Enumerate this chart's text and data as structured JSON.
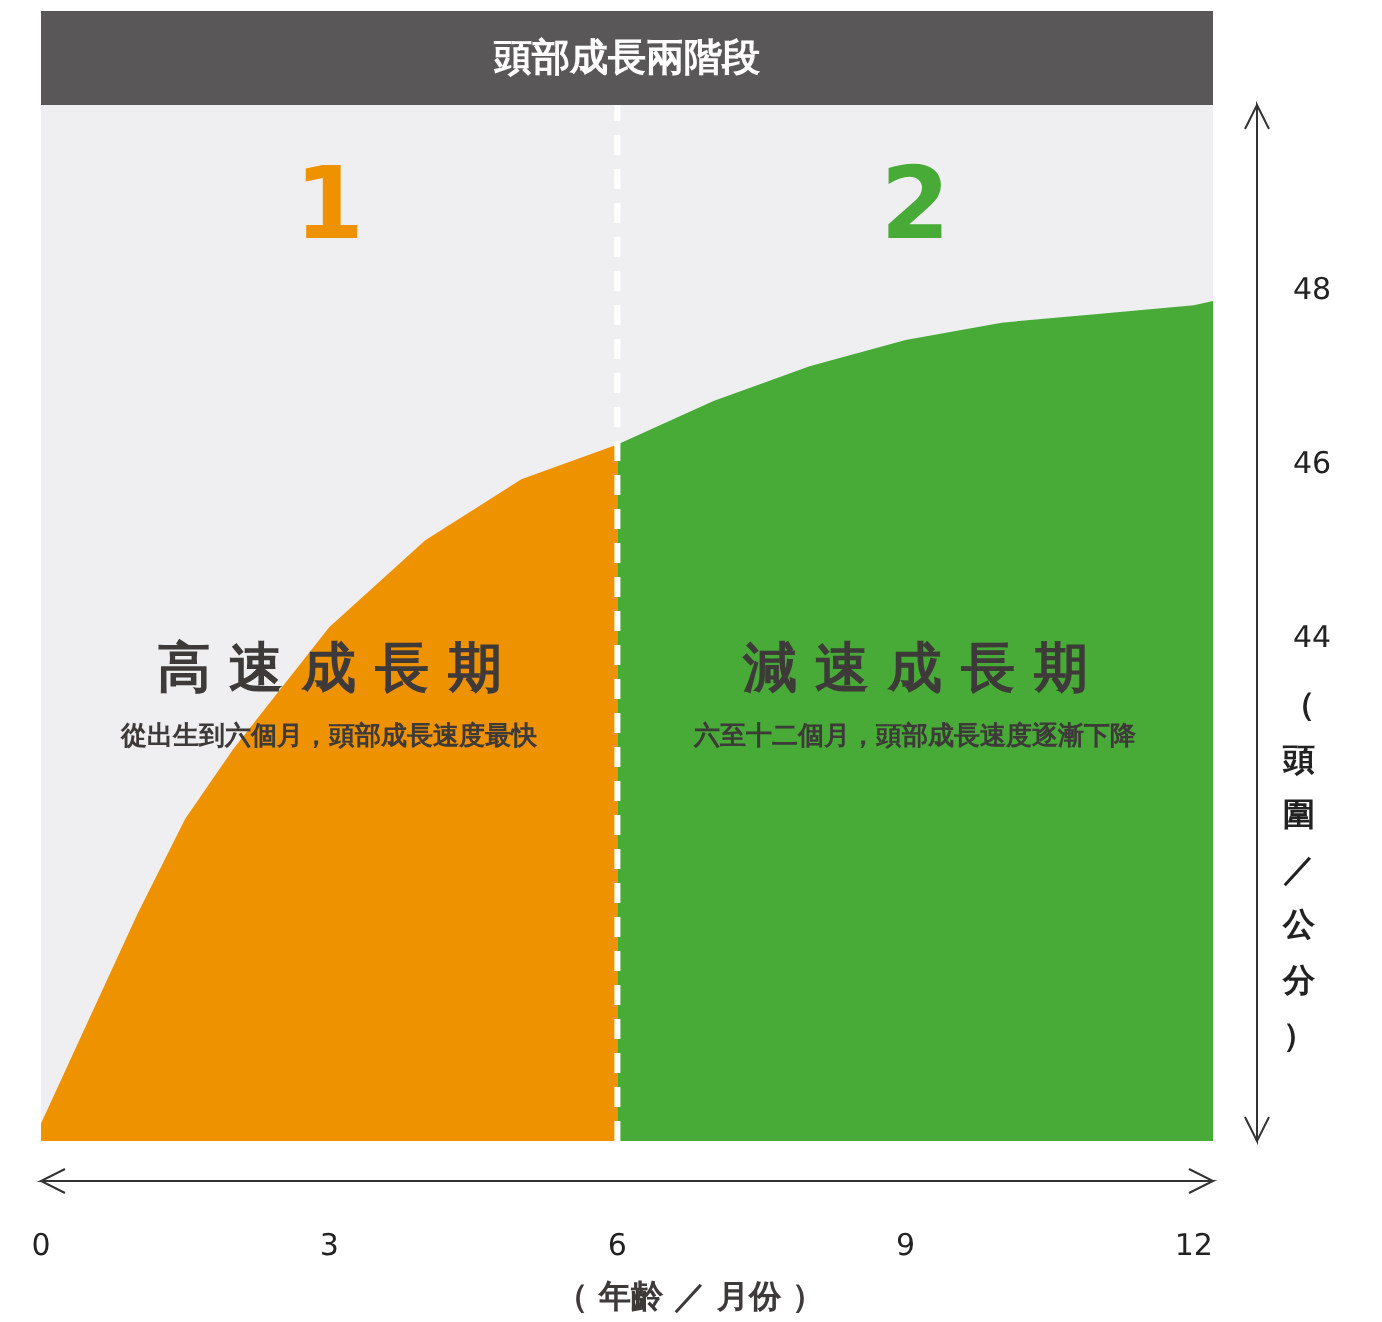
{
  "chart_data": {
    "type": "area",
    "title": "頭部成長兩階段",
    "xlabel": "（ 年齡 ／ 月份 ）",
    "ylabel": "（頭圍／公分）",
    "xlim": [
      0,
      12.2
    ],
    "xticks": [
      0,
      3,
      6,
      9,
      12
    ],
    "ylim": [
      38.2,
      50.1
    ],
    "yticks": [
      44,
      46,
      48
    ],
    "series": [
      {
        "name": "1",
        "color": "#ef9200",
        "x": [
          0,
          0.5,
          1,
          1.5,
          2,
          3,
          4,
          5,
          6
        ],
        "values": [
          38.4,
          39.6,
          40.8,
          41.9,
          42.7,
          44.1,
          45.1,
          45.8,
          46.2
        ]
      },
      {
        "name": "2",
        "color": "#48ab37",
        "x": [
          6,
          7,
          8,
          9,
          10,
          11,
          12,
          12.2
        ],
        "values": [
          46.2,
          46.7,
          47.1,
          47.4,
          47.6,
          47.7,
          47.8,
          47.85
        ]
      }
    ],
    "ref_lines": [
      {
        "axis": "x",
        "value": 6,
        "color": "#ffffff",
        "line_style": "dashed"
      }
    ],
    "annotations": [
      "高 速 成 長 期",
      "從出生到六個月，頭部成長速度最快",
      "減 速 成 長 期",
      "六至十二個月，頭部成長速度逐漸下降"
    ]
  }
}
